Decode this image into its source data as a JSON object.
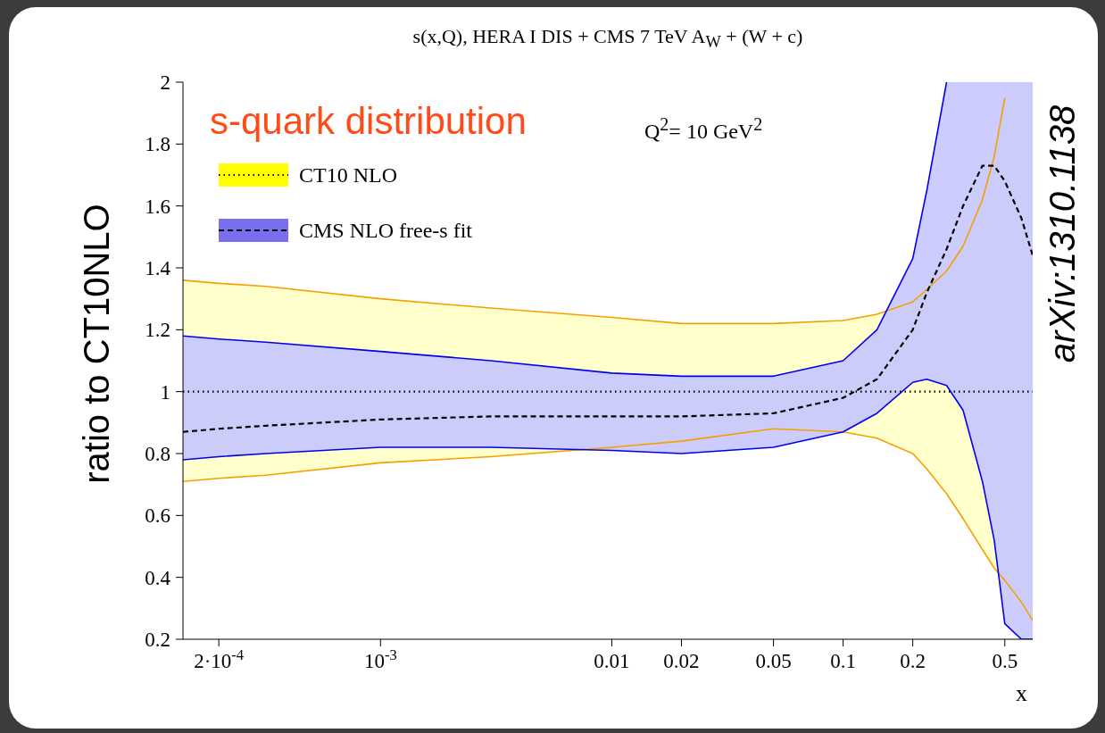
{
  "chart_data": {
    "type": "line",
    "title": "s(x,Q), HERA I DIS + CMS 7 TeV A$_{W}$ + (W + c)",
    "xlabel": "x",
    "ylabel": "ratio to CT10NLO",
    "annotations": [
      "s-quark distribution",
      "Q$^{2}$= 10 GeV$^{2}$",
      "arXiv:1310.1138"
    ],
    "x": [
      0.00014,
      0.0002,
      0.00032,
      0.001,
      0.003,
      0.01,
      0.02,
      0.05,
      0.1,
      0.14,
      0.2,
      0.23,
      0.28,
      0.33,
      0.4,
      0.45,
      0.5,
      0.59,
      0.66
    ],
    "series": [
      {
        "color": "#f5a000",
        "values": [
          0.71,
          0.72,
          0.73,
          0.77,
          0.79,
          0.82,
          0.84,
          0.88,
          0.87,
          0.85,
          0.8,
          0.75,
          0.67,
          0.59,
          0.49,
          0.43,
          0.39,
          0.32,
          0.26
        ]
      },
      {
        "color": "#f5a000",
        "values": [
          1.36,
          1.35,
          1.34,
          1.3,
          1.27,
          1.24,
          1.22,
          1.22,
          1.23,
          1.25,
          1.29,
          1.33,
          1.39,
          1.47,
          1.62,
          1.76,
          1.95,
          null,
          null
        ]
      },
      {
        "color": "#0000ee",
        "values": [
          0.78,
          0.79,
          0.8,
          0.82,
          0.82,
          0.81,
          0.8,
          0.82,
          0.87,
          0.93,
          1.03,
          1.04,
          1.02,
          0.94,
          0.71,
          0.52,
          0.25,
          0.2,
          0.2
        ]
      },
      {
        "color": "#0000ee",
        "values": [
          1.18,
          1.17,
          1.16,
          1.13,
          1.1,
          1.06,
          1.05,
          1.05,
          1.1,
          1.2,
          1.43,
          1.65,
          2,
          null,
          null,
          null,
          null,
          null,
          null
        ]
      },
      {
        "name": "CT10 NLO",
        "color": "#000000",
        "line_style": "dotted",
        "values": [
          1,
          1,
          1,
          1,
          1,
          1,
          1,
          1,
          1,
          1,
          1,
          1,
          1,
          1,
          1,
          1,
          1,
          1,
          1
        ],
        "lower": [
          0.71,
          0.72,
          0.73,
          0.77,
          0.79,
          0.82,
          0.84,
          0.88,
          0.87,
          0.85,
          0.8,
          0.75,
          0.67,
          0.59,
          0.49,
          0.43,
          0.39,
          0.32,
          0.26
        ],
        "upper": [
          1.36,
          1.35,
          1.34,
          1.3,
          1.27,
          1.24,
          1.22,
          1.22,
          1.23,
          1.25,
          1.29,
          1.33,
          1.39,
          1.47,
          1.62,
          1.76,
          1.95,
          2,
          2
        ]
      },
      {
        "name": "CMS NLO free-s fit",
        "color": "#000000",
        "line_style": "dashed",
        "values": [
          0.87,
          0.88,
          0.89,
          0.91,
          0.92,
          0.92,
          0.92,
          0.93,
          0.98,
          1.04,
          1.2,
          1.32,
          1.46,
          1.6,
          1.73,
          1.73,
          1.68,
          1.56,
          1.44
        ],
        "lower": [
          0.78,
          0.79,
          0.8,
          0.82,
          0.82,
          0.81,
          0.8,
          0.82,
          0.87,
          0.93,
          1.03,
          1.04,
          1.02,
          0.94,
          0.71,
          0.52,
          0.25,
          0.2,
          0.2
        ],
        "upper": [
          1.18,
          1.17,
          1.16,
          1.13,
          1.1,
          1.06,
          1.05,
          1.05,
          1.1,
          1.2,
          1.43,
          1.65,
          2,
          2,
          2,
          2,
          2,
          2,
          2
        ]
      }
    ],
    "log": "x",
    "xlim": [
      0.00014,
      0.66
    ],
    "xticks": [
      {
        "value": 0.0002,
        "label": "2·10$^{-4}$"
      },
      {
        "value": 0.001,
        "label": "10$^{-3}$"
      },
      0.01,
      0.02,
      0.05,
      0.1,
      0.2,
      0.5
    ],
    "ylim": [
      0.2,
      2
    ],
    "yticks": [
      0.2,
      0.4,
      0.6,
      0.8,
      1,
      1.2,
      1.4,
      1.6,
      1.8,
      2
    ],
    "grid": false,
    "legend": "top left",
    "marker": "none"
  }
}
